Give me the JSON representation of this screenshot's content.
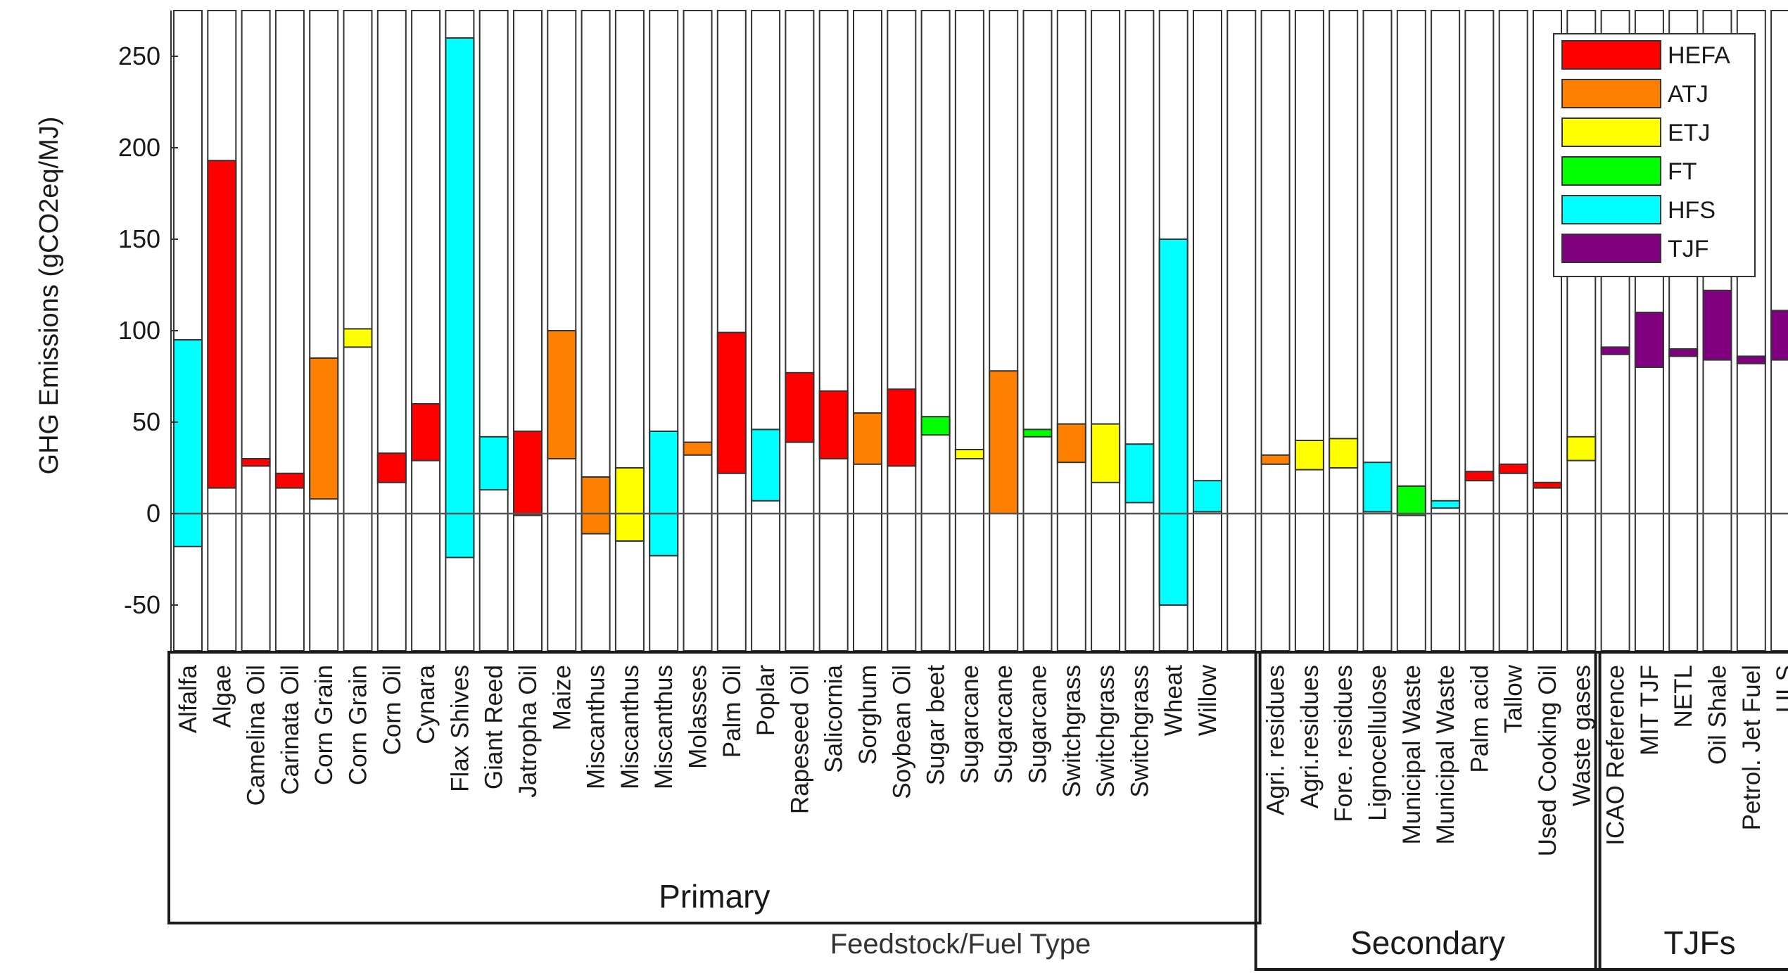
{
  "chart_data": {
    "type": "bar",
    "subtype": "floating-range",
    "ylabel": "GHG Emissions (gCO2eq/MJ)",
    "xlabel": "Feedstock/Fuel Type",
    "ylim": [
      -75,
      275
    ],
    "yticks": [
      -50,
      0,
      50,
      100,
      150,
      200,
      250
    ],
    "legend": [
      {
        "name": "HEFA",
        "color": "#ff0000"
      },
      {
        "name": "ATJ",
        "color": "#ff7f00"
      },
      {
        "name": "ETJ",
        "color": "#ffff00"
      },
      {
        "name": "FT",
        "color": "#00ff00"
      },
      {
        "name": "HFS",
        "color": "#00ffff"
      },
      {
        "name": "TJF",
        "color": "#800080"
      }
    ],
    "legend_position": "top-right",
    "groups": [
      {
        "name": "Primary",
        "start": 0,
        "end": 31
      },
      {
        "name": "Secondary",
        "start": 32,
        "end": 41
      },
      {
        "name": "TJFs",
        "start": 42,
        "end": 47
      }
    ],
    "categories": [
      {
        "label": "Alfalfa",
        "series": "HFS",
        "low": -18,
        "high": 95
      },
      {
        "label": "Algae",
        "series": "HEFA",
        "low": 14,
        "high": 193
      },
      {
        "label": "Camelina Oil",
        "series": "HEFA",
        "low": 26,
        "high": 30
      },
      {
        "label": "Carinata Oil",
        "series": "HEFA",
        "low": 14,
        "high": 22
      },
      {
        "label": "Corn Grain",
        "series": "ATJ",
        "low": 8,
        "high": 85
      },
      {
        "label": "Corn Grain",
        "series": "ETJ",
        "low": 91,
        "high": 101
      },
      {
        "label": "Corn Oil",
        "series": "HEFA",
        "low": 17,
        "high": 33
      },
      {
        "label": "Cynara",
        "series": "HEFA",
        "low": 29,
        "high": 60
      },
      {
        "label": "Flax Shives",
        "series": "HFS",
        "low": -24,
        "high": 260
      },
      {
        "label": "Giant Reed",
        "series": "HFS",
        "low": 13,
        "high": 42
      },
      {
        "label": "Jatropha Oil",
        "series": "HEFA",
        "low": -1,
        "high": 45
      },
      {
        "label": "Maize",
        "series": "ATJ",
        "low": 30,
        "high": 100
      },
      {
        "label": "Miscanthus",
        "series": "ATJ",
        "low": -11,
        "high": 20
      },
      {
        "label": "Miscanthus",
        "series": "ETJ",
        "low": -15,
        "high": 25
      },
      {
        "label": "Miscanthus",
        "series": "HFS",
        "low": -23,
        "high": 45
      },
      {
        "label": "Molasses",
        "series": "ATJ",
        "low": 32,
        "high": 39
      },
      {
        "label": "Palm Oil",
        "series": "HEFA",
        "low": 22,
        "high": 99
      },
      {
        "label": "Poplar",
        "series": "HFS",
        "low": 7,
        "high": 46
      },
      {
        "label": "Rapeseed Oil",
        "series": "HEFA",
        "low": 39,
        "high": 77
      },
      {
        "label": "Salicornia",
        "series": "HEFA",
        "low": 30,
        "high": 67
      },
      {
        "label": "Sorghum",
        "series": "ATJ",
        "low": 27,
        "high": 55
      },
      {
        "label": "Soybean Oil",
        "series": "HEFA",
        "low": 26,
        "high": 68
      },
      {
        "label": "Sugar beet",
        "series": "FT",
        "low": 43,
        "high": 53
      },
      {
        "label": "Sugarcane",
        "series": "ETJ",
        "low": 30,
        "high": 35
      },
      {
        "label": "Sugarcane",
        "series": "ATJ",
        "low": 0,
        "high": 78
      },
      {
        "label": "Sugarcane",
        "series": "FT",
        "low": 42,
        "high": 46
      },
      {
        "label": "Switchgrass",
        "series": "ATJ",
        "low": 28,
        "high": 49
      },
      {
        "label": "Switchgrass",
        "series": "ETJ",
        "low": 17,
        "high": 49
      },
      {
        "label": "Switchgrass",
        "series": "HFS",
        "low": 6,
        "high": 38
      },
      {
        "label": "Wheat",
        "series": "HFS",
        "low": -50,
        "high": 150
      },
      {
        "label": "Willow",
        "series": "HFS",
        "low": 1,
        "high": 18
      },
      {
        "label": "",
        "series": "",
        "low": null,
        "high": null
      },
      {
        "label": "Agri. residues",
        "series": "ATJ",
        "low": 27,
        "high": 32
      },
      {
        "label": "Agri.residues",
        "series": "ETJ",
        "low": 24,
        "high": 40
      },
      {
        "label": "Fore. residues",
        "series": "ETJ",
        "low": 25,
        "high": 41
      },
      {
        "label": "Lignocellulose",
        "series": "HFS",
        "low": 1,
        "high": 28
      },
      {
        "label": "Municipal Waste",
        "series": "FT",
        "low": -1,
        "high": 15
      },
      {
        "label": "Municipal Waste",
        "series": "HFS",
        "low": 3,
        "high": 7
      },
      {
        "label": "Palm acid",
        "series": "HEFA",
        "low": 18,
        "high": 23
      },
      {
        "label": "Tallow",
        "series": "HEFA",
        "low": 22,
        "high": 27
      },
      {
        "label": "Used Cooking Oil",
        "series": "HEFA",
        "low": 14,
        "high": 17
      },
      {
        "label": "Waste gases",
        "series": "ETJ",
        "low": 29,
        "high": 42
      },
      {
        "label": "ICAO Reference",
        "series": "TJF",
        "low": 87,
        "high": 91
      },
      {
        "label": "MIT TJF",
        "series": "TJF",
        "low": 80,
        "high": 110
      },
      {
        "label": "NETL",
        "series": "TJF",
        "low": 86,
        "high": 90
      },
      {
        "label": "Oil Shale",
        "series": "TJF",
        "low": 84,
        "high": 122
      },
      {
        "label": "Petrol. Jet Fuel",
        "series": "TJF",
        "low": 82,
        "high": 86
      },
      {
        "label": "ULS",
        "series": "TJF",
        "low": 84,
        "high": 111
      }
    ]
  }
}
